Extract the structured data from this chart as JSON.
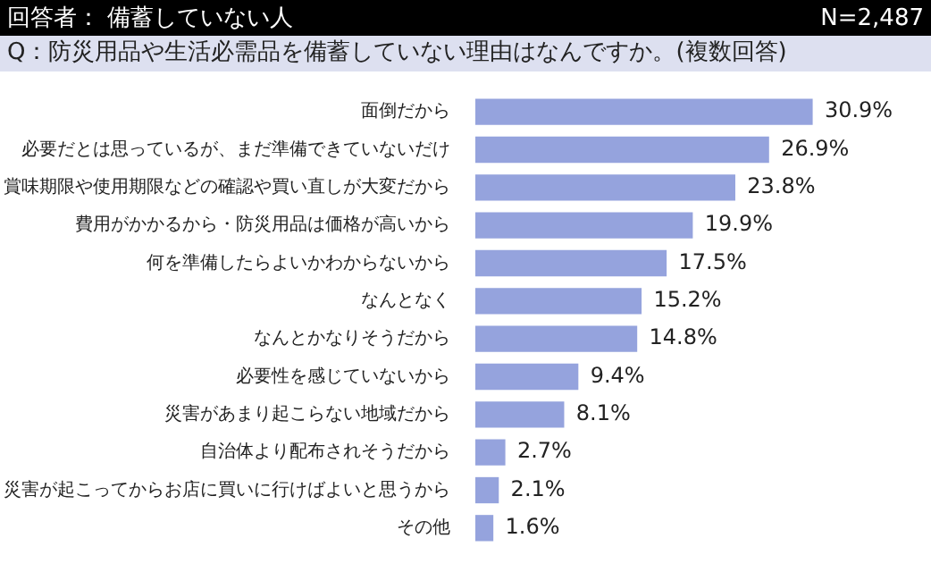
{
  "chart_data": {
    "type": "bar",
    "orientation": "horizontal",
    "title": "回答者： 備蓄していない人",
    "subtitle": "Q：防災用品や生活必需品を備蓄していない理由はなんですか。(複数回答)",
    "annotations": [
      "N=2,487"
    ],
    "categories": [
      "面倒だから",
      "必要だとは思っているが、まだ準備できていないだけ",
      "賞味期限や使用期限などの確認や買い直しが大変だから",
      "費用がかかるから・防災用品は価格が高いから",
      "何を準備したらよいかわからないから",
      "なんとなく",
      "なんとかなりそうだから",
      "必要性を感じていないから",
      "災害があまり起こらない地域だから",
      "自治体より配布されそうだから",
      "災害が起こってからお店に買いに行けばよいと思うから",
      "その他"
    ],
    "values": [
      30.9,
      26.9,
      23.8,
      19.9,
      17.5,
      15.2,
      14.8,
      9.4,
      8.1,
      2.7,
      2.1,
      1.6
    ],
    "value_labels": [
      "30.9%",
      "26.9%",
      "23.8%",
      "19.9%",
      "17.5%",
      "15.2%",
      "14.8%",
      "9.4%",
      "8.1%",
      "2.7%",
      "2.1%",
      "1.6%"
    ],
    "color": "#95a3dd",
    "legend": false,
    "tick_labels": "y"
  }
}
